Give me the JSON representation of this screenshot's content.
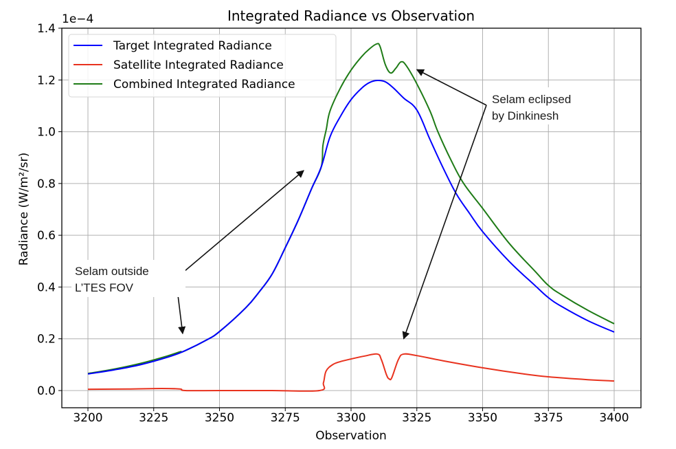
{
  "chart_data": {
    "type": "line",
    "title": "Integrated Radiance vs Observation",
    "xlabel": "Observation",
    "ylabel": "Radiance (W/m²/sr)",
    "y_offset_label": "1e−4",
    "xlim": [
      3189,
      3409
    ],
    "ylim": [
      -0.07,
      1.4
    ],
    "xticks": [
      3200,
      3225,
      3250,
      3275,
      3300,
      3325,
      3350,
      3375,
      3400
    ],
    "xtick_labels": [
      "3200",
      "3225",
      "3250",
      "3275",
      "3300",
      "3325",
      "3350",
      "3375",
      "3400"
    ],
    "yticks": [
      0.0,
      0.2,
      0.4,
      0.6,
      0.8,
      1.0,
      1.2,
      1.4
    ],
    "ytick_labels": [
      "0.0",
      "0.2",
      "0.4",
      "0.6",
      "0.8",
      "1.0",
      "1.2",
      "1.4"
    ],
    "grid": true,
    "legend_position": "top-left",
    "series": [
      {
        "name": "Target Integrated Radiance",
        "color": "#0000ff",
        "x": [
          3200,
          3210,
          3220,
          3230,
          3236,
          3245,
          3250,
          3260,
          3265,
          3270,
          3275,
          3280,
          3285,
          3288.7,
          3292,
          3296,
          3300,
          3304,
          3307,
          3310,
          3313,
          3316,
          3320,
          3325,
          3330,
          3335,
          3340,
          3345,
          3350,
          3360,
          3370,
          3375,
          3380,
          3390,
          3400
        ],
        "y": [
          0.064,
          0.08,
          0.1,
          0.128,
          0.15,
          0.195,
          0.228,
          0.32,
          0.38,
          0.45,
          0.552,
          0.66,
          0.78,
          0.865,
          0.98,
          1.06,
          1.124,
          1.168,
          1.19,
          1.198,
          1.193,
          1.17,
          1.13,
          1.084,
          0.97,
          0.86,
          0.76,
          0.685,
          0.614,
          0.5,
          0.405,
          0.359,
          0.325,
          0.27,
          0.226
        ]
      },
      {
        "name": "Satellite Integrated Radiance",
        "color": "#e8321e",
        "x": [
          3200,
          3215,
          3228,
          3235,
          3237,
          3250,
          3270,
          3288,
          3289.5,
          3290.5,
          3293,
          3296,
          3300,
          3305,
          3310,
          3311.5,
          3313.5,
          3314.5,
          3315.5,
          3318,
          3320,
          3325,
          3335,
          3350,
          3365,
          3375,
          3390,
          3400
        ],
        "y": [
          0.005,
          0.006,
          0.008,
          0.006,
          0.0,
          0.0,
          0.0,
          0.0,
          0.03,
          0.075,
          0.1,
          0.112,
          0.122,
          0.133,
          0.141,
          0.12,
          0.06,
          0.045,
          0.05,
          0.12,
          0.141,
          0.135,
          0.115,
          0.088,
          0.065,
          0.053,
          0.042,
          0.037
        ]
      },
      {
        "name": "Combined Integrated Radiance",
        "color": "#1e7b16",
        "x": [
          3200,
          3210,
          3220,
          3230,
          3235,
          3236.5,
          3245,
          3250,
          3260,
          3265,
          3270,
          3275,
          3280,
          3285,
          3288.7,
          3289.3,
          3290.6,
          3292,
          3296,
          3300,
          3304,
          3307,
          3309.7,
          3311,
          3313,
          3315,
          3317,
          3319,
          3321,
          3325,
          3330,
          3333,
          3338,
          3342.8,
          3350,
          3360,
          3370,
          3375,
          3380,
          3390,
          3400
        ],
        "y": [
          0.066,
          0.083,
          0.105,
          0.133,
          0.15,
          0.152,
          0.195,
          0.228,
          0.32,
          0.38,
          0.45,
          0.552,
          0.66,
          0.78,
          0.865,
          0.946,
          1.01,
          1.08,
          1.17,
          1.238,
          1.29,
          1.32,
          1.339,
          1.33,
          1.26,
          1.227,
          1.245,
          1.27,
          1.255,
          1.185,
          1.08,
          1.0,
          0.89,
          0.8,
          0.704,
          0.57,
          0.46,
          0.406,
          0.37,
          0.31,
          0.258
        ]
      }
    ],
    "annotations": [
      {
        "text_lines": [
          "Selam outside",
          "L’TES FOV"
        ],
        "arrow_targets": [
          [
            3236,
            0.22
          ],
          [
            3282,
            0.85
          ]
        ],
        "text_anchor": [
          3216,
          0.43
        ]
      },
      {
        "text_lines": [
          "Selam eclipsed",
          "by Dinkinesh"
        ],
        "arrow_targets": [
          [
            3325,
            1.24
          ],
          [
            3320,
            0.2
          ]
        ],
        "text_anchor": [
          3350,
          1.15
        ]
      }
    ]
  }
}
